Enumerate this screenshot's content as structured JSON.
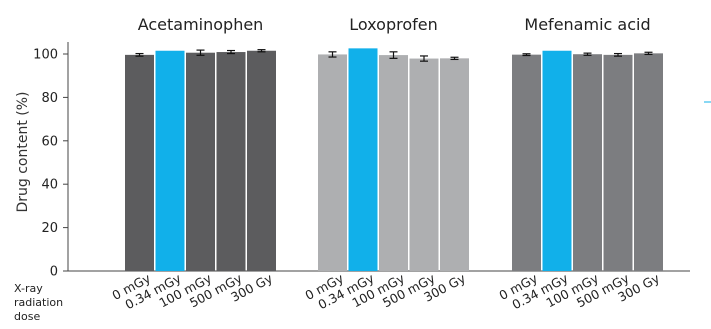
{
  "chart_data": {
    "type": "bar",
    "ylabel": "Drug content (%)",
    "ylim": [
      0,
      100
    ],
    "yticks": [
      0,
      20,
      40,
      60,
      80,
      100
    ],
    "categories": [
      "0 mGy",
      "0.34 mGy",
      "100 mGy",
      "500 mGy",
      "300 Gy"
    ],
    "x_axis_title": [
      "X-ray",
      "radiation",
      "dose"
    ],
    "highlight_index": 1,
    "groups": [
      {
        "name": "Acetaminophen",
        "values": [
          99.6,
          101.5,
          100.6,
          100.9,
          101.5
        ],
        "errors": [
          0.6,
          0.0,
          1.2,
          0.7,
          0.5
        ],
        "color": "#5c5c5e"
      },
      {
        "name": "Loxoprofen",
        "values": [
          99.8,
          102.6,
          99.5,
          97.9,
          98.0
        ],
        "errors": [
          1.2,
          0.0,
          1.5,
          1.2,
          0.5
        ],
        "color": "#aeafb1"
      },
      {
        "name": "Mefenamic acid",
        "values": [
          99.7,
          101.5,
          99.9,
          99.6,
          100.3
        ],
        "errors": [
          0.4,
          0.0,
          0.5,
          0.6,
          0.5
        ],
        "color": "#7c7d80"
      }
    ],
    "highlight_color": "#11b0ea",
    "grid": false
  }
}
